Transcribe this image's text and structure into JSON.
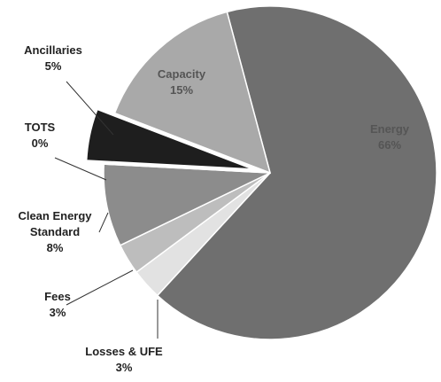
{
  "chart_data": {
    "type": "pie",
    "categories": [
      "Energy",
      "Losses & UFE",
      "Fees",
      "Clean Energy Standard",
      "TOTS",
      "Ancillaries",
      "Capacity"
    ],
    "values": [
      66,
      3,
      3,
      8,
      0,
      5,
      15
    ],
    "value_labels": [
      "66%",
      "3%",
      "3%",
      "8%",
      "0%",
      "5%",
      "15%"
    ],
    "colors": [
      "#6f6f6f",
      "#e2e2e2",
      "#bdbdbd",
      "#8c8c8c",
      "#d4d4d4",
      "#1e1e1e",
      "#a9a9a9"
    ]
  }
}
